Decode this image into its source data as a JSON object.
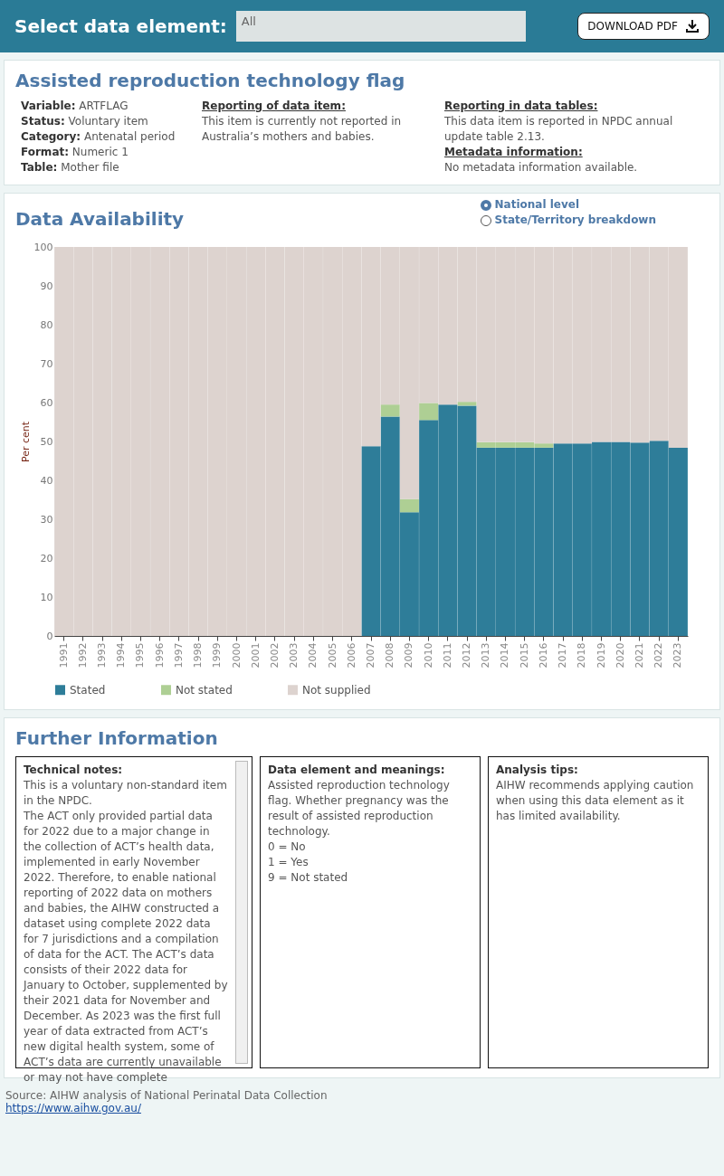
{
  "chart_data": [
    {
      "type": "other",
      "title": "Assisted reproduction technology flag",
      "annotations": [
        "Select data element:",
        "All",
        "DOWNLOAD PDF",
        "Variable: ARTFLAG",
        "Status: Voluntary item",
        "Category: Antenatal period",
        "Format: Numeric 1",
        "Table: Mother file",
        "Reporting of data item:",
        "This item is currently not reported in Australia’s mothers and babies.",
        "Reporting in data tables:",
        "This data item is reported in NPDC annual update table 2.13.",
        "Metadata information:",
        "No metadata information available."
      ]
    },
    {
      "type": "bar",
      "title": "Data Availability",
      "ylabel": "Per cent",
      "stacked": true,
      "legend": "bottom",
      "ylim": [
        0,
        100
      ],
      "yticks": [
        0,
        10,
        20,
        30,
        40,
        50,
        60,
        70,
        80,
        90,
        100
      ],
      "annotations": [
        "National level",
        "State/Territory breakdown"
      ],
      "categories": [
        "1991",
        "1992",
        "1993",
        "1994",
        "1995",
        "1996",
        "1997",
        "1998",
        "1999",
        "2000",
        "2001",
        "2002",
        "2003",
        "2004",
        "2005",
        "2006",
        "2007",
        "2008",
        "2009",
        "2010",
        "2011",
        "2012",
        "2013",
        "2014",
        "2015",
        "2016",
        "2017",
        "2018",
        "2019",
        "2020",
        "2021",
        "2022",
        "2023"
      ],
      "series": [
        {
          "name": "Stated",
          "color": "#2e7d99",
          "values": [
            0,
            0,
            0,
            0,
            0,
            0,
            0,
            0,
            0,
            0,
            0,
            0,
            0,
            0,
            0,
            0,
            48.8,
            56.4,
            31.8,
            55.5,
            59.5,
            59.2,
            48.4,
            48.4,
            48.4,
            48.4,
            49.5,
            49.5,
            49.9,
            49.9,
            49.7,
            50.2,
            48.4
          ]
        },
        {
          "name": "Not stated",
          "color": "#aecf94",
          "values": [
            0,
            0,
            0,
            0,
            0,
            0,
            0,
            0,
            0,
            0,
            0,
            0,
            0,
            0,
            0,
            0,
            0,
            3.1,
            3.4,
            4.4,
            0,
            1.0,
            1.4,
            1.4,
            1.4,
            1.1,
            0,
            0,
            0,
            0,
            0,
            0,
            0
          ]
        },
        {
          "name": "Not supplied",
          "color": "#ddd3cf",
          "values": [
            100,
            100,
            100,
            100,
            100,
            100,
            100,
            100,
            100,
            100,
            100,
            100,
            100,
            100,
            100,
            100,
            51.2,
            40.5,
            64.8,
            40.1,
            40.5,
            39.8,
            50.2,
            50.2,
            50.2,
            50.5,
            50.5,
            50.5,
            50.1,
            50.1,
            50.3,
            49.8,
            51.6
          ]
        }
      ]
    },
    {
      "type": "other",
      "title": "Further Information",
      "annotations": [
        "Technical notes:",
        "This is a voluntary non-standard item in the NPDC.",
        "The ACT only provided partial data for 2022 due to a major change in the collection of ACT’s health data, implemented in early November 2022. Therefore, to enable national reporting of 2022 data on mothers and babies, the AIHW constructed a dataset using complete 2022 data for 7 jurisdictions and a compilation of data for the ACT. The ACT’s data consists of their 2022 data for January to October, supplemented by their 2021 data for November and December. As 2023 was the first full year of data extracted from ACT’s new digital health system, some of ACT’s data are currently unavailable or may not have complete",
        "Data element and meanings:",
        "Assisted reproduction technology flag. Whether pregnancy was the result of assisted reproduction technology.",
        "0 = No",
        "1 = Yes",
        "9 = Not stated",
        "Analysis tips:",
        "AIHW recommends applying caution when using this data element as it has limited availability.",
        "Source: AIHW analysis of National Perinatal Data Collection",
        "https://www.aihw.gov.au/"
      ]
    }
  ]
}
